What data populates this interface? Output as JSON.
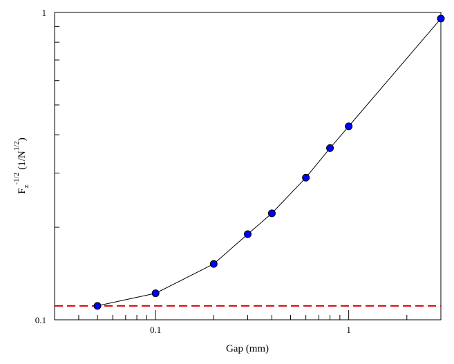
{
  "chart_data": {
    "type": "scatter",
    "title": "",
    "xlabel": "Gap (mm)",
    "ylabel": {
      "base": "F",
      "sub": "z",
      "exp": "-1/2",
      "unit_open": "(1/N",
      "unit_exp": "1/2",
      "unit_close": ")"
    },
    "xscale": "log",
    "yscale": "log",
    "xlim": [
      0.03,
      3.0
    ],
    "ylim": [
      0.1,
      1.0
    ],
    "grid": false,
    "x_ticks": [
      {
        "value": 0.1,
        "label": "0.1"
      },
      {
        "value": 1,
        "label": "1"
      }
    ],
    "y_ticks": [
      {
        "value": 0.1,
        "label": "0.1"
      },
      {
        "value": 1,
        "label": "1"
      }
    ],
    "series": [
      {
        "marker": "circle",
        "marker_color": "#0000ff",
        "line_color": "#000000",
        "x": [
          0.05,
          0.1,
          0.2,
          0.3,
          0.4,
          0.6,
          0.8,
          1.0,
          3.0
        ],
        "y": [
          0.111,
          0.122,
          0.152,
          0.19,
          0.222,
          0.29,
          0.362,
          0.426,
          0.955
        ]
      }
    ],
    "reference_line": {
      "y": 0.111,
      "color": "#e00000",
      "style": "dashed"
    }
  }
}
